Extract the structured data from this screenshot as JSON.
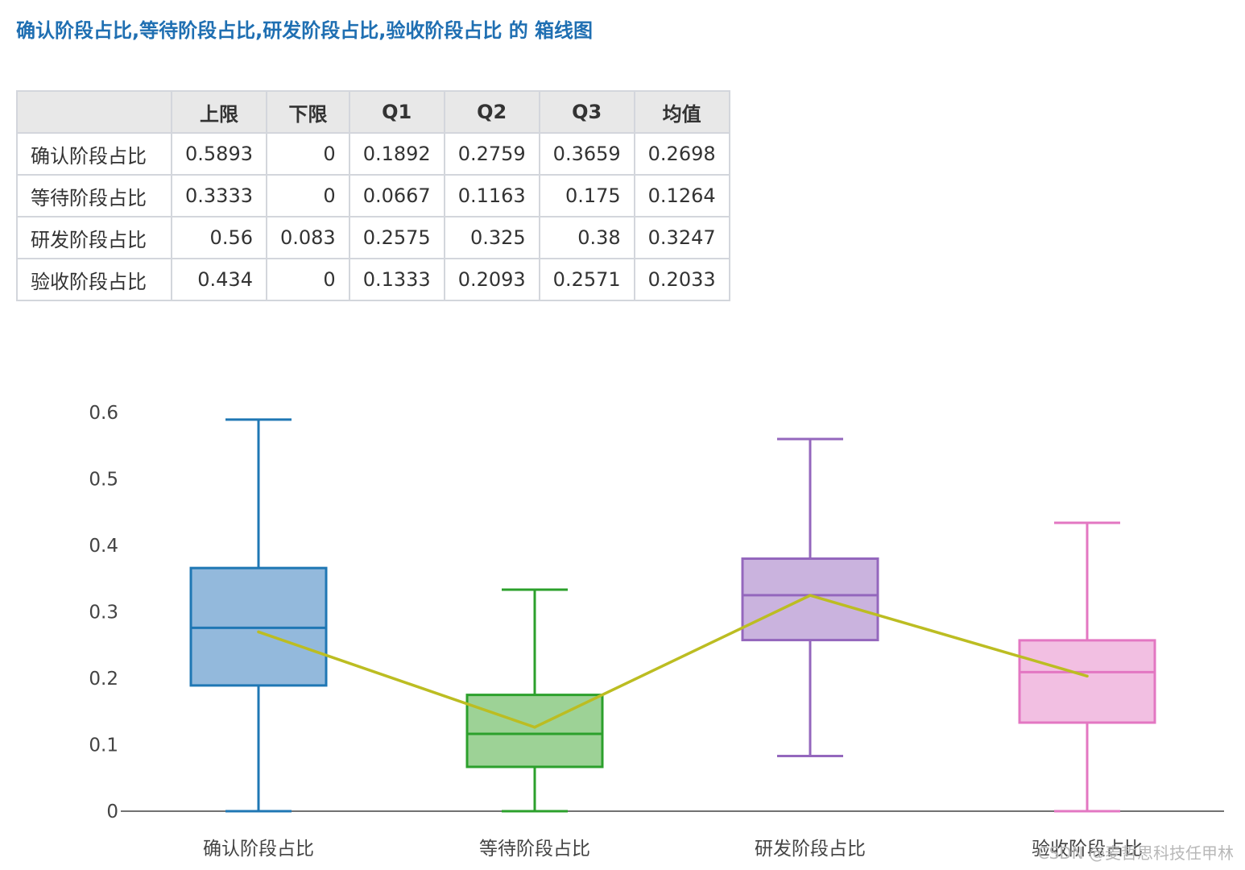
{
  "title": "确认阶段占比,等待阶段占比,研发阶段占比,验收阶段占比 的 箱线图",
  "table": {
    "headers": [
      "",
      "上限",
      "下限",
      "Q1",
      "Q2",
      "Q3",
      "均值"
    ],
    "rows": [
      [
        "确认阶段占比",
        "0.5893",
        "0",
        "0.1892",
        "0.2759",
        "0.3659",
        "0.2698"
      ],
      [
        "等待阶段占比",
        "0.3333",
        "0",
        "0.0667",
        "0.1163",
        "0.175",
        "0.1264"
      ],
      [
        "研发阶段占比",
        "0.56",
        "0.083",
        "0.2575",
        "0.325",
        "0.38",
        "0.3247"
      ],
      [
        "验收阶段占比",
        "0.434",
        "0",
        "0.1333",
        "0.2093",
        "0.2571",
        "0.2033"
      ]
    ]
  },
  "chart_data": {
    "type": "box",
    "categories": [
      "确认阶段占比",
      "等待阶段占比",
      "研发阶段占比",
      "验收阶段占比"
    ],
    "boxes": [
      {
        "upper": 0.5893,
        "lower": 0,
        "q1": 0.1892,
        "median": 0.2759,
        "q3": 0.3659,
        "mean": 0.2698
      },
      {
        "upper": 0.3333,
        "lower": 0,
        "q1": 0.0667,
        "median": 0.1163,
        "q3": 0.175,
        "mean": 0.1264
      },
      {
        "upper": 0.56,
        "lower": 0.083,
        "q1": 0.2575,
        "median": 0.325,
        "q3": 0.38,
        "mean": 0.3247
      },
      {
        "upper": 0.434,
        "lower": 0,
        "q1": 0.1333,
        "median": 0.2093,
        "q3": 0.2571,
        "mean": 0.2033
      }
    ],
    "colors": [
      "#1f77b4",
      "#2ca02c",
      "#9467bd",
      "#e377c2"
    ],
    "fill_colors": [
      "#93b9dc",
      "#9dd296",
      "#cab3de",
      "#f2bfe2"
    ],
    "mean_line_color": "#bcbd22",
    "yticks": [
      "0",
      "0.1",
      "0.2",
      "0.3",
      "0.4",
      "0.5",
      "0.6"
    ],
    "ylim": [
      0,
      0.6
    ],
    "grid": false
  },
  "watermark": "CSDN @麦哲思科技任甲林"
}
